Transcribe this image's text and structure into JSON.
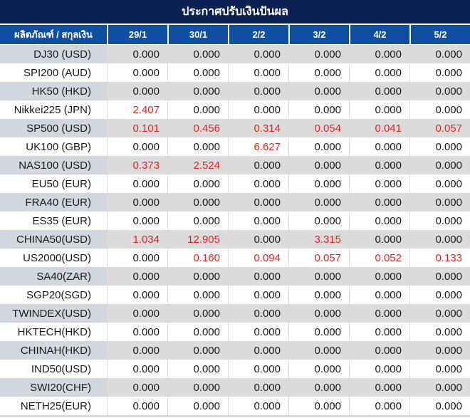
{
  "title": "ประกาศปรับเงินปันผล",
  "colors": {
    "title_bar_bg": "#0c2153",
    "header_row_bg": "#0e4fa1",
    "highlight_red": "#e02428",
    "row_gray": "#dbdbdb",
    "row_gray_label": "#d2d6dd",
    "row_white": "#ffffff"
  },
  "table": {
    "product_header": "ผลิตภัณฑ์ / สกุลเงิน",
    "date_headers": [
      "29/1",
      "30/1",
      "2/2",
      "3/2",
      "4/2",
      "5/2"
    ],
    "rows": [
      {
        "label": "DJ30 (USD)",
        "values": [
          "0.000",
          "0.000",
          "0.000",
          "0.000",
          "0.000",
          "0.000"
        ],
        "red": [
          false,
          false,
          false,
          false,
          false,
          false
        ]
      },
      {
        "label": "SPI200 (AUD)",
        "values": [
          "0.000",
          "0.000",
          "0.000",
          "0.000",
          "0.000",
          "0.000"
        ],
        "red": [
          false,
          false,
          false,
          false,
          false,
          false
        ]
      },
      {
        "label": "HK50 (HKD)",
        "values": [
          "0.000",
          "0.000",
          "0.000",
          "0.000",
          "0.000",
          "0.000"
        ],
        "red": [
          false,
          false,
          false,
          false,
          false,
          false
        ]
      },
      {
        "label": "Nikkei225 (JPN)",
        "values": [
          "2.407",
          "0.000",
          "0.000",
          "0.000",
          "0.000",
          "0.000"
        ],
        "red": [
          true,
          false,
          false,
          false,
          false,
          false
        ]
      },
      {
        "label": "SP500 (USD)",
        "values": [
          "0.101",
          "0.456",
          "0.314",
          "0.054",
          "0.041",
          "0.057"
        ],
        "red": [
          true,
          true,
          true,
          true,
          true,
          true
        ]
      },
      {
        "label": "UK100 (GBP)",
        "values": [
          "0.000",
          "0.000",
          "6.627",
          "0.000",
          "0.000",
          "0.000"
        ],
        "red": [
          false,
          false,
          true,
          false,
          false,
          false
        ]
      },
      {
        "label": "NAS100 (USD)",
        "values": [
          "0.373",
          "2.524",
          "0.000",
          "0.000",
          "0.000",
          "0.000"
        ],
        "red": [
          true,
          true,
          false,
          false,
          false,
          false
        ]
      },
      {
        "label": "EU50 (EUR)",
        "values": [
          "0.000",
          "0.000",
          "0.000",
          "0.000",
          "0.000",
          "0.000"
        ],
        "red": [
          false,
          false,
          false,
          false,
          false,
          false
        ]
      },
      {
        "label": "FRA40 (EUR)",
        "values": [
          "0.000",
          "0.000",
          "0.000",
          "0.000",
          "0.000",
          "0.000"
        ],
        "red": [
          false,
          false,
          false,
          false,
          false,
          false
        ]
      },
      {
        "label": "ES35 (EUR)",
        "values": [
          "0.000",
          "0.000",
          "0.000",
          "0.000",
          "0.000",
          "0.000"
        ],
        "red": [
          false,
          false,
          false,
          false,
          false,
          false
        ]
      },
      {
        "label": "CHINA50(USD)",
        "values": [
          "1.034",
          "12.905",
          "0.000",
          "3.315",
          "0.000",
          "0.000"
        ],
        "red": [
          true,
          true,
          false,
          true,
          false,
          false
        ]
      },
      {
        "label": "US2000(USD)",
        "values": [
          "0.000",
          "0.160",
          "0.094",
          "0.057",
          "0.052",
          "0.133"
        ],
        "red": [
          false,
          true,
          true,
          true,
          true,
          true
        ]
      },
      {
        "label": "SA40(ZAR)",
        "values": [
          "0.000",
          "0.000",
          "0.000",
          "0.000",
          "0.000",
          "0.000"
        ],
        "red": [
          false,
          false,
          false,
          false,
          false,
          false
        ]
      },
      {
        "label": "SGP20(SGD)",
        "values": [
          "0.000",
          "0.000",
          "0.000",
          "0.000",
          "0.000",
          "0.000"
        ],
        "red": [
          false,
          false,
          false,
          false,
          false,
          false
        ]
      },
      {
        "label": "TWINDEX(USD)",
        "values": [
          "0.000",
          "0.000",
          "0.000",
          "0.000",
          "0.000",
          "0.000"
        ],
        "red": [
          false,
          false,
          false,
          false,
          false,
          false
        ]
      },
      {
        "label": "HKTECH(HKD)",
        "values": [
          "0.000",
          "0.000",
          "0.000",
          "0.000",
          "0.000",
          "0.000"
        ],
        "red": [
          false,
          false,
          false,
          false,
          false,
          false
        ]
      },
      {
        "label": "CHINAH(HKD)",
        "values": [
          "0.000",
          "0.000",
          "0.000",
          "0.000",
          "0.000",
          "0.000"
        ],
        "red": [
          false,
          false,
          false,
          false,
          false,
          false
        ]
      },
      {
        "label": "IND50(USD)",
        "values": [
          "0.000",
          "0.000",
          "0.000",
          "0.000",
          "0.000",
          "0.000"
        ],
        "red": [
          false,
          false,
          false,
          false,
          false,
          false
        ]
      },
      {
        "label": "SWI20(CHF)",
        "values": [
          "0.000",
          "0.000",
          "0.000",
          "0.000",
          "0.000",
          "0.000"
        ],
        "red": [
          false,
          false,
          false,
          false,
          false,
          false
        ]
      },
      {
        "label": "NETH25(EUR)",
        "values": [
          "0.000",
          "0.000",
          "0.000",
          "0.000",
          "0.000",
          "0.000"
        ],
        "red": [
          false,
          false,
          false,
          false,
          false,
          false
        ]
      }
    ]
  }
}
